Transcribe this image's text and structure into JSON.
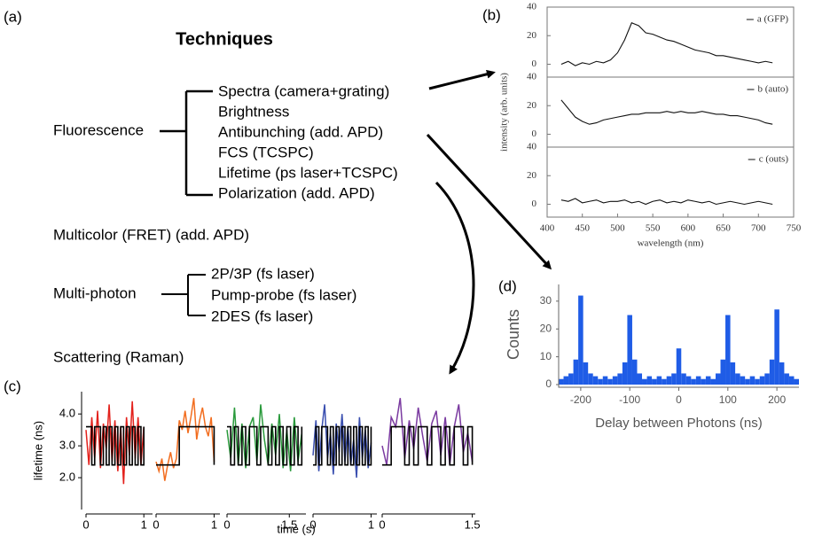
{
  "panel_labels": [
    "(a)",
    "(b)",
    "(c)",
    "(d)"
  ],
  "techniques": {
    "title": "Techniques",
    "groups": [
      {
        "label": "Fluorescence",
        "items": [
          "Spectra (camera+grating)",
          "Brightness",
          "Antibunching (add. APD)",
          "FCS (TCSPC)",
          "Lifetime (ps laser+TCSPC)",
          "Polarization (add. APD)"
        ]
      },
      {
        "label": "Multicolor (FRET) (add. APD)"
      },
      {
        "label": "Multi-photon",
        "items": [
          "2P/3P (fs laser)",
          "Pump-probe (fs laser)",
          "2DES (fs laser)"
        ]
      },
      {
        "label": "Scattering (Raman)"
      }
    ]
  },
  "chart_data": [
    {
      "type": "line",
      "x_label": "wavelength (nm)",
      "y_label": "intensity (arb. units)",
      "xlim": [
        400,
        750
      ],
      "xticks": [
        400,
        450,
        500,
        550,
        600,
        650,
        700,
        750
      ],
      "ylim": [
        -9,
        40
      ],
      "yticks": [
        0,
        20,
        40
      ],
      "x": [
        420,
        430,
        440,
        450,
        460,
        470,
        480,
        490,
        500,
        510,
        520,
        530,
        540,
        550,
        560,
        570,
        580,
        590,
        600,
        610,
        620,
        630,
        640,
        650,
        660,
        670,
        680,
        690,
        700,
        710,
        720
      ],
      "series": [
        {
          "name": "a (GFP)",
          "color": "#111111",
          "values": [
            0,
            2,
            -1,
            1,
            0,
            2,
            1,
            3,
            8,
            17,
            29,
            27,
            22,
            21,
            19,
            17,
            16,
            14,
            12,
            10,
            9,
            8,
            6,
            6,
            5,
            4,
            3,
            2,
            1,
            2,
            1
          ]
        },
        {
          "name": "b (auto)",
          "color": "#111111",
          "values": [
            24,
            18,
            12,
            9,
            7,
            8,
            10,
            11,
            12,
            13,
            14,
            14,
            15,
            15,
            15,
            16,
            15,
            16,
            15,
            15,
            16,
            15,
            14,
            14,
            13,
            13,
            12,
            11,
            10,
            8,
            7
          ]
        },
        {
          "name": "c (outs)",
          "color": "#111111",
          "values": [
            3,
            2,
            4,
            1,
            2,
            3,
            1,
            2,
            2,
            3,
            1,
            2,
            0,
            2,
            3,
            1,
            2,
            1,
            3,
            2,
            1,
            2,
            0,
            1,
            2,
            1,
            0,
            1,
            2,
            1,
            0
          ]
        }
      ]
    },
    {
      "type": "line",
      "x_label": "time (s)",
      "y_label": "lifetime (ns)",
      "ylim": [
        1.0,
        4.7
      ],
      "yticks": [
        {
          "value": 2,
          "label": "2.0"
        },
        {
          "value": 3,
          "label": "3.0"
        },
        {
          "value": 4,
          "label": "4.0"
        }
      ],
      "panels": [
        {
          "xlim": [
            0,
            1.15
          ],
          "xticks": [
            0,
            1
          ],
          "x": [
            0,
            0.05,
            0.1,
            0.15,
            0.2,
            0.25,
            0.3,
            0.35,
            0.4,
            0.45,
            0.5,
            0.55,
            0.6,
            0.65,
            0.7,
            0.75,
            0.8,
            0.85,
            0.9,
            0.95,
            1.0
          ],
          "series": [
            {
              "color": "#e3211c",
              "values": [
                3.5,
                2.4,
                3.9,
                2.6,
                4.1,
                2.3,
                3.7,
                2.9,
                4.3,
                2.5,
                3.8,
                2.2,
                3.6,
                1.8,
                3.9,
                2.7,
                4.4,
                2.6,
                3.9,
                2.4,
                3.6
              ]
            },
            {
              "color": "#000000",
              "drawstyle": "steps",
              "values": [
                3.6,
                3.6,
                2.4,
                3.6,
                3.6,
                2.4,
                3.6,
                2.4,
                3.6,
                2.4,
                3.6,
                2.4,
                3.6,
                2.4,
                3.6,
                2.4,
                3.6,
                2.4,
                3.6,
                2.4,
                3.6
              ]
            }
          ]
        },
        {
          "xlim": [
            0,
            1.1
          ],
          "xticks": [
            0,
            1
          ],
          "x": [
            0,
            0.05,
            0.1,
            0.15,
            0.2,
            0.25,
            0.3,
            0.35,
            0.4,
            0.45,
            0.5,
            0.55,
            0.6,
            0.65,
            0.7,
            0.75,
            0.8,
            0.85,
            0.9,
            0.95,
            1.0
          ],
          "series": [
            {
              "color": "#f26d1f",
              "values": [
                2.5,
                2.2,
                2.6,
                1.9,
                2.4,
                2.8,
                2.3,
                2.6,
                3.8,
                3.5,
                4.1,
                3.4,
                3.9,
                4.5,
                3.2,
                3.8,
                4.2,
                3.6,
                3.3,
                3.9,
                2.5
              ]
            },
            {
              "color": "#000000",
              "drawstyle": "steps",
              "values": [
                2.4,
                2.4,
                2.4,
                2.4,
                2.4,
                2.4,
                2.4,
                2.4,
                3.6,
                3.6,
                3.6,
                3.6,
                3.6,
                3.6,
                3.6,
                3.6,
                3.6,
                3.6,
                3.6,
                3.6,
                2.4
              ]
            }
          ]
        },
        {
          "xlim": [
            0,
            1.9
          ],
          "xticks": [
            0,
            1.5
          ],
          "x": [
            0,
            0.09,
            0.18,
            0.27,
            0.36,
            0.45,
            0.54,
            0.63,
            0.72,
            0.81,
            0.9,
            0.99,
            1.08,
            1.17,
            1.26,
            1.35,
            1.44,
            1.53,
            1.62,
            1.71,
            1.8
          ],
          "series": [
            {
              "color": "#2a9a3c",
              "values": [
                3.5,
                2.6,
                4.2,
                2.4,
                3.7,
                2.3,
                3.6,
                3.9,
                2.5,
                4.3,
                3.2,
                2.4,
                3.7,
                2.7,
                4.0,
                2.3,
                3.5,
                2.2,
                3.9,
                2.5,
                3.4
              ]
            },
            {
              "color": "#000000",
              "drawstyle": "steps",
              "values": [
                3.6,
                2.4,
                3.6,
                2.4,
                3.6,
                2.4,
                3.6,
                3.6,
                2.4,
                3.6,
                3.6,
                2.4,
                3.6,
                2.4,
                3.6,
                2.4,
                3.6,
                2.4,
                3.6,
                2.4,
                3.6
              ]
            }
          ]
        },
        {
          "xlim": [
            0,
            1.1
          ],
          "xticks": [
            0,
            1
          ],
          "x": [
            0,
            0.05,
            0.1,
            0.15,
            0.2,
            0.25,
            0.3,
            0.35,
            0.4,
            0.45,
            0.5,
            0.55,
            0.6,
            0.65,
            0.7,
            0.75,
            0.8,
            0.85,
            0.9,
            0.95,
            1.0
          ],
          "series": [
            {
              "color": "#3a4fb0",
              "values": [
                2.7,
                3.8,
                2.2,
                3.5,
                4.3,
                2.6,
                3.4,
                2.1,
                3.7,
                2.8,
                4.0,
                2.5,
                3.6,
                2.4,
                3.2,
                2.0,
                3.9,
                2.6,
                3.5,
                2.3,
                3.1
              ]
            },
            {
              "color": "#000000",
              "drawstyle": "steps",
              "values": [
                2.4,
                3.6,
                2.4,
                3.6,
                3.6,
                2.4,
                3.6,
                2.4,
                3.6,
                2.4,
                3.6,
                2.4,
                3.6,
                2.4,
                3.6,
                2.4,
                3.6,
                2.4,
                3.6,
                2.4,
                3.6
              ]
            }
          ]
        },
        {
          "xlim": [
            0,
            1.55
          ],
          "xticks": [
            0,
            1.5
          ],
          "x": [
            0,
            0.075,
            0.15,
            0.225,
            0.3,
            0.375,
            0.45,
            0.525,
            0.6,
            0.675,
            0.75,
            0.825,
            0.9,
            0.975,
            1.05,
            1.125,
            1.2,
            1.275,
            1.35,
            1.425,
            1.5
          ],
          "series": [
            {
              "color": "#7a3aa0",
              "values": [
                3.0,
                2.4,
                3.9,
                3.6,
                4.5,
                2.6,
                3.8,
                2.9,
                4.2,
                3.3,
                2.5,
                3.7,
                4.1,
                2.7,
                3.9,
                2.4,
                3.6,
                4.3,
                2.8,
                3.4,
                2.5
              ]
            },
            {
              "color": "#000000",
              "drawstyle": "steps",
              "values": [
                2.4,
                2.4,
                3.6,
                3.6,
                3.6,
                2.4,
                3.6,
                2.4,
                3.6,
                3.6,
                2.4,
                3.6,
                3.6,
                2.4,
                3.6,
                2.4,
                3.6,
                3.6,
                2.4,
                3.6,
                2.4
              ]
            }
          ]
        }
      ]
    },
    {
      "type": "histogram",
      "x_label": "Delay between Photons (ns)",
      "y_label": "Counts",
      "xlim": [
        -245,
        245
      ],
      "xticks": [
        -200,
        -100,
        0,
        100,
        200
      ],
      "ylim": [
        0,
        36
      ],
      "yticks": [
        0,
        10,
        20,
        30
      ],
      "color": "#1f5ce6",
      "bins": [
        -245,
        -235,
        -225,
        -215,
        -205,
        -195,
        -185,
        -175,
        -165,
        -155,
        -145,
        -135,
        -125,
        -115,
        -105,
        -95,
        -85,
        -75,
        -65,
        -55,
        -45,
        -35,
        -25,
        -15,
        -5,
        5,
        15,
        25,
        35,
        45,
        55,
        65,
        75,
        85,
        95,
        105,
        115,
        125,
        135,
        145,
        155,
        165,
        175,
        185,
        195,
        205,
        215,
        225,
        235,
        245
      ],
      "counts": [
        2,
        3,
        4,
        9,
        32,
        8,
        4,
        3,
        2,
        3,
        2,
        3,
        4,
        8,
        25,
        9,
        4,
        2,
        3,
        2,
        3,
        2,
        3,
        4,
        13,
        4,
        3,
        2,
        3,
        2,
        3,
        2,
        4,
        9,
        25,
        8,
        4,
        3,
        2,
        3,
        2,
        3,
        4,
        9,
        27,
        8,
        4,
        3,
        2
      ]
    }
  ]
}
